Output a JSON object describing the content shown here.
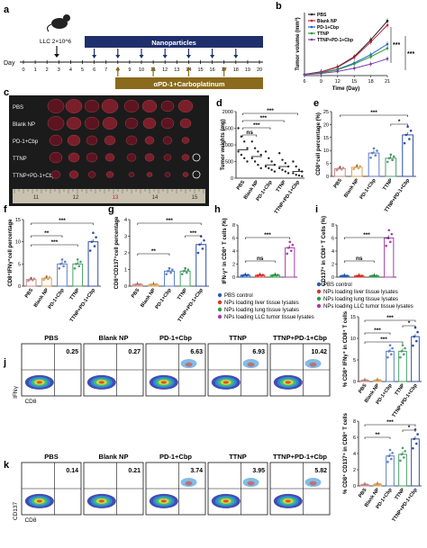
{
  "panel_letters": {
    "a": "a",
    "b": "b",
    "c": "c",
    "d": "d",
    "e": "e",
    "f": "f",
    "g": "g",
    "h": "h",
    "i": "i",
    "j": "j",
    "k": "k"
  },
  "panel_a": {
    "mouse_label": "LLC 2×10^6",
    "day_label": "Day",
    "days": [
      "0",
      "1",
      "2",
      "3",
      "4",
      "5",
      "6",
      "7",
      "8",
      "9",
      "10",
      "11",
      "12",
      "13",
      "14",
      "15",
      "16",
      "17",
      "18",
      "19",
      "20"
    ],
    "bar_nanoparticles": "Nanoparticles",
    "bar_treatment": "αPD-1+Carboplatinum",
    "colors": {
      "nano": "#1f2f6b",
      "treat": "#8a6a1c"
    }
  },
  "panel_c": {
    "rows": [
      "PBS",
      "Blank NP",
      "PD-1+Cbp",
      "TTNP",
      "TTNP+PD-1+Cbp"
    ],
    "ruler": [
      "11",
      "12",
      "13",
      "14",
      "15"
    ]
  },
  "panel_h_legend": [
    "PBS control",
    "NPs loading liver tissue lysates",
    "NPs loading lung tissue lysates",
    "NPs loading LLC tumor tissue lysates"
  ],
  "panel_i_legend": [
    "PBS control",
    "NPs loading liver tissue lysates",
    "NPs loading lung tissue lysates",
    "NPs loading LLC tumor tissue lysates"
  ],
  "legend_colors": [
    "#2b5bb5",
    "#d9342b",
    "#2e9a4a",
    "#a83caa"
  ],
  "flow_j": {
    "groups": [
      "PBS",
      "Blank NP",
      "PD-1+Cbp",
      "TTNP",
      "TTNP+PD-1+Cbp"
    ],
    "values": [
      "0.25",
      "0.27",
      "6.63",
      "6.93",
      "10.42"
    ],
    "xlabel": "CD8",
    "ylabel": "IFNγ"
  },
  "flow_k": {
    "groups": [
      "PBS",
      "Blank NP",
      "PD-1+Cbp",
      "TTNP",
      "TTNP+PD-1+Cbp"
    ],
    "values": [
      "0.14",
      "0.21",
      "3.74",
      "3.95",
      "5.82"
    ],
    "xlabel": "CD8",
    "ylabel": "CD137"
  },
  "chart_data": [
    {
      "id": "b",
      "type": "line",
      "xlabel": "Time (Day)",
      "ylabel": "Tumor volume (mm³)",
      "x": [
        6,
        9,
        12,
        15,
        18,
        21
      ],
      "ylim": [
        0,
        3000
      ],
      "x_ticks": [
        "6",
        "9",
        "12",
        "15",
        "18",
        "21"
      ],
      "series": [
        {
          "name": "PBS",
          "values": [
            60,
            180,
            420,
            900,
            1700,
            2600
          ],
          "color": "#1a1a1a"
        },
        {
          "name": "Blank NP",
          "values": [
            55,
            170,
            400,
            860,
            1600,
            2400
          ],
          "color": "#c81e3c"
        },
        {
          "name": "PD-1+Cbp",
          "values": [
            50,
            140,
            300,
            600,
            1000,
            1500
          ],
          "color": "#2166c9"
        },
        {
          "name": "TTNP",
          "values": [
            50,
            130,
            280,
            550,
            900,
            1300
          ],
          "color": "#2a9a3a"
        },
        {
          "name": "TTNP+PD-1+Cbp",
          "values": [
            45,
            100,
            200,
            350,
            550,
            800
          ],
          "color": "#7b3aa8"
        }
      ],
      "annotations": [
        "***",
        "***"
      ]
    },
    {
      "id": "d",
      "type": "scatter",
      "ylabel": "Tumor weights (mg)",
      "ylim": [
        0,
        2000
      ],
      "y_ticks": [
        "0",
        "500",
        "1000",
        "1500",
        "2000"
      ],
      "categories": [
        "PBS",
        "Blank NP",
        "PD-1+Cbp",
        "TTNP",
        "TTNP+PD-1+Cbp"
      ],
      "means": [
        850,
        650,
        400,
        350,
        200
      ],
      "points": [
        [
          1500,
          1250,
          1100,
          900,
          800,
          700,
          600,
          500
        ],
        [
          1100,
          900,
          800,
          700,
          600,
          500,
          400,
          300
        ],
        [
          800,
          600,
          500,
          400,
          350,
          300,
          250,
          200
        ],
        [
          750,
          550,
          450,
          350,
          300,
          250,
          200,
          150
        ],
        [
          500,
          350,
          250,
          200,
          150,
          100,
          80,
          60
        ]
      ],
      "annotations": [
        "ns",
        "***",
        "***",
        "***"
      ]
    },
    {
      "id": "e",
      "type": "bar",
      "ylabel": "CD8⁺cell percentage (%)",
      "ylim": [
        0,
        25
      ],
      "y_ticks": [
        "0",
        "5",
        "10",
        "15",
        "20",
        "25"
      ],
      "categories": [
        "PBS",
        "Blank NP",
        "PD-1+Cbp",
        "TTNP",
        "TTNP+PD-1+Cbp"
      ],
      "values": [
        3,
        3.5,
        9,
        7,
        16
      ],
      "colors": [
        "#c98b8b",
        "#d9a35c",
        "#5b7fc9",
        "#4aa06a",
        "#2f4fa8"
      ],
      "annotations": [
        "***",
        "*"
      ]
    },
    {
      "id": "f",
      "type": "bar",
      "ylabel": "CD8⁺IFNγ⁺cell percentage",
      "ylim": [
        0,
        15
      ],
      "y_ticks": [
        "0",
        "5",
        "10",
        "15"
      ],
      "categories": [
        "PBS",
        "Blank NP",
        "PD-1+Cbp",
        "TTNP",
        "TTNP+PD-1+Cbp"
      ],
      "values": [
        1.5,
        1.8,
        5,
        5,
        10
      ],
      "colors": [
        "#c98b8b",
        "#d9a35c",
        "#5b7fc9",
        "#4aa06a",
        "#2f4fa8"
      ],
      "annotations": [
        "***",
        "**",
        "***"
      ]
    },
    {
      "id": "g",
      "type": "bar",
      "ylabel": "CD8⁺CD137⁺cell percentage",
      "ylim": [
        0,
        4
      ],
      "y_ticks": [
        "0",
        "1",
        "2",
        "3",
        "4"
      ],
      "categories": [
        "PBS",
        "Blank NP",
        "PD-1+Cbp",
        "TTNP",
        "TTNP+PD-1+Cbp"
      ],
      "values": [
        0.1,
        0.1,
        0.9,
        0.9,
        2.5
      ],
      "colors": [
        "#c98b8b",
        "#d9a35c",
        "#5b7fc9",
        "#4aa06a",
        "#2f4fa8"
      ],
      "annotations": [
        "***",
        "**",
        "***"
      ]
    },
    {
      "id": "h",
      "type": "bar",
      "ylabel": "IFN-γ⁺ in CD8⁺ T cells (%)",
      "ylim": [
        0,
        8
      ],
      "y_ticks": [
        "0",
        "2",
        "4",
        "6",
        "8"
      ],
      "values": [
        0.3,
        0.3,
        0.3,
        4.5
      ],
      "colors": [
        "#2b5bb5",
        "#d9342b",
        "#2e9a4a",
        "#a83caa"
      ],
      "annotations": [
        "***",
        "ns"
      ]
    },
    {
      "id": "i",
      "type": "bar",
      "ylabel": "CD137⁺ in CD8⁺ T Cells (%)",
      "ylim": [
        0,
        8
      ],
      "y_ticks": [
        "0",
        "2",
        "4",
        "6",
        "8"
      ],
      "values": [
        0.2,
        0.2,
        0.2,
        6
      ],
      "colors": [
        "#2b5bb5",
        "#d9342b",
        "#2e9a4a",
        "#a83caa"
      ],
      "annotations": [
        "***",
        "ns"
      ]
    },
    {
      "id": "j",
      "type": "bar",
      "ylabel": "% CD8⁺ IFNγ⁺ in CD8⁺ T cells",
      "ylim": [
        0,
        15
      ],
      "y_ticks": [
        "0",
        "5",
        "10",
        "15"
      ],
      "categories": [
        "PBS",
        "Blank NP",
        "PD-1+Cbp",
        "TTNP",
        "TTNP+PD-1+Cbp"
      ],
      "values": [
        0.25,
        0.27,
        7,
        7,
        10.4
      ],
      "colors": [
        "#c98b8b",
        "#d9a35c",
        "#5b7fc9",
        "#4aa06a",
        "#2f4fa8"
      ],
      "annotations": [
        "***",
        "***",
        "***",
        "*"
      ]
    },
    {
      "id": "k",
      "type": "bar",
      "ylabel": "% CD8⁺ CD137⁺ in CD8⁺ T cells",
      "ylim": [
        0,
        8
      ],
      "y_ticks": [
        "0",
        "2",
        "4",
        "6",
        "8"
      ],
      "categories": [
        "PBS",
        "Blank NP",
        "PD-1+Cbp",
        "TTNP",
        "TTNP+PD-1+Cbp"
      ],
      "values": [
        0.15,
        0.2,
        3.7,
        3.9,
        5.8
      ],
      "colors": [
        "#c98b8b",
        "#d9a35c",
        "#5b7fc9",
        "#4aa06a",
        "#2f4fa8"
      ],
      "annotations": [
        "***",
        "**",
        "*"
      ]
    }
  ]
}
